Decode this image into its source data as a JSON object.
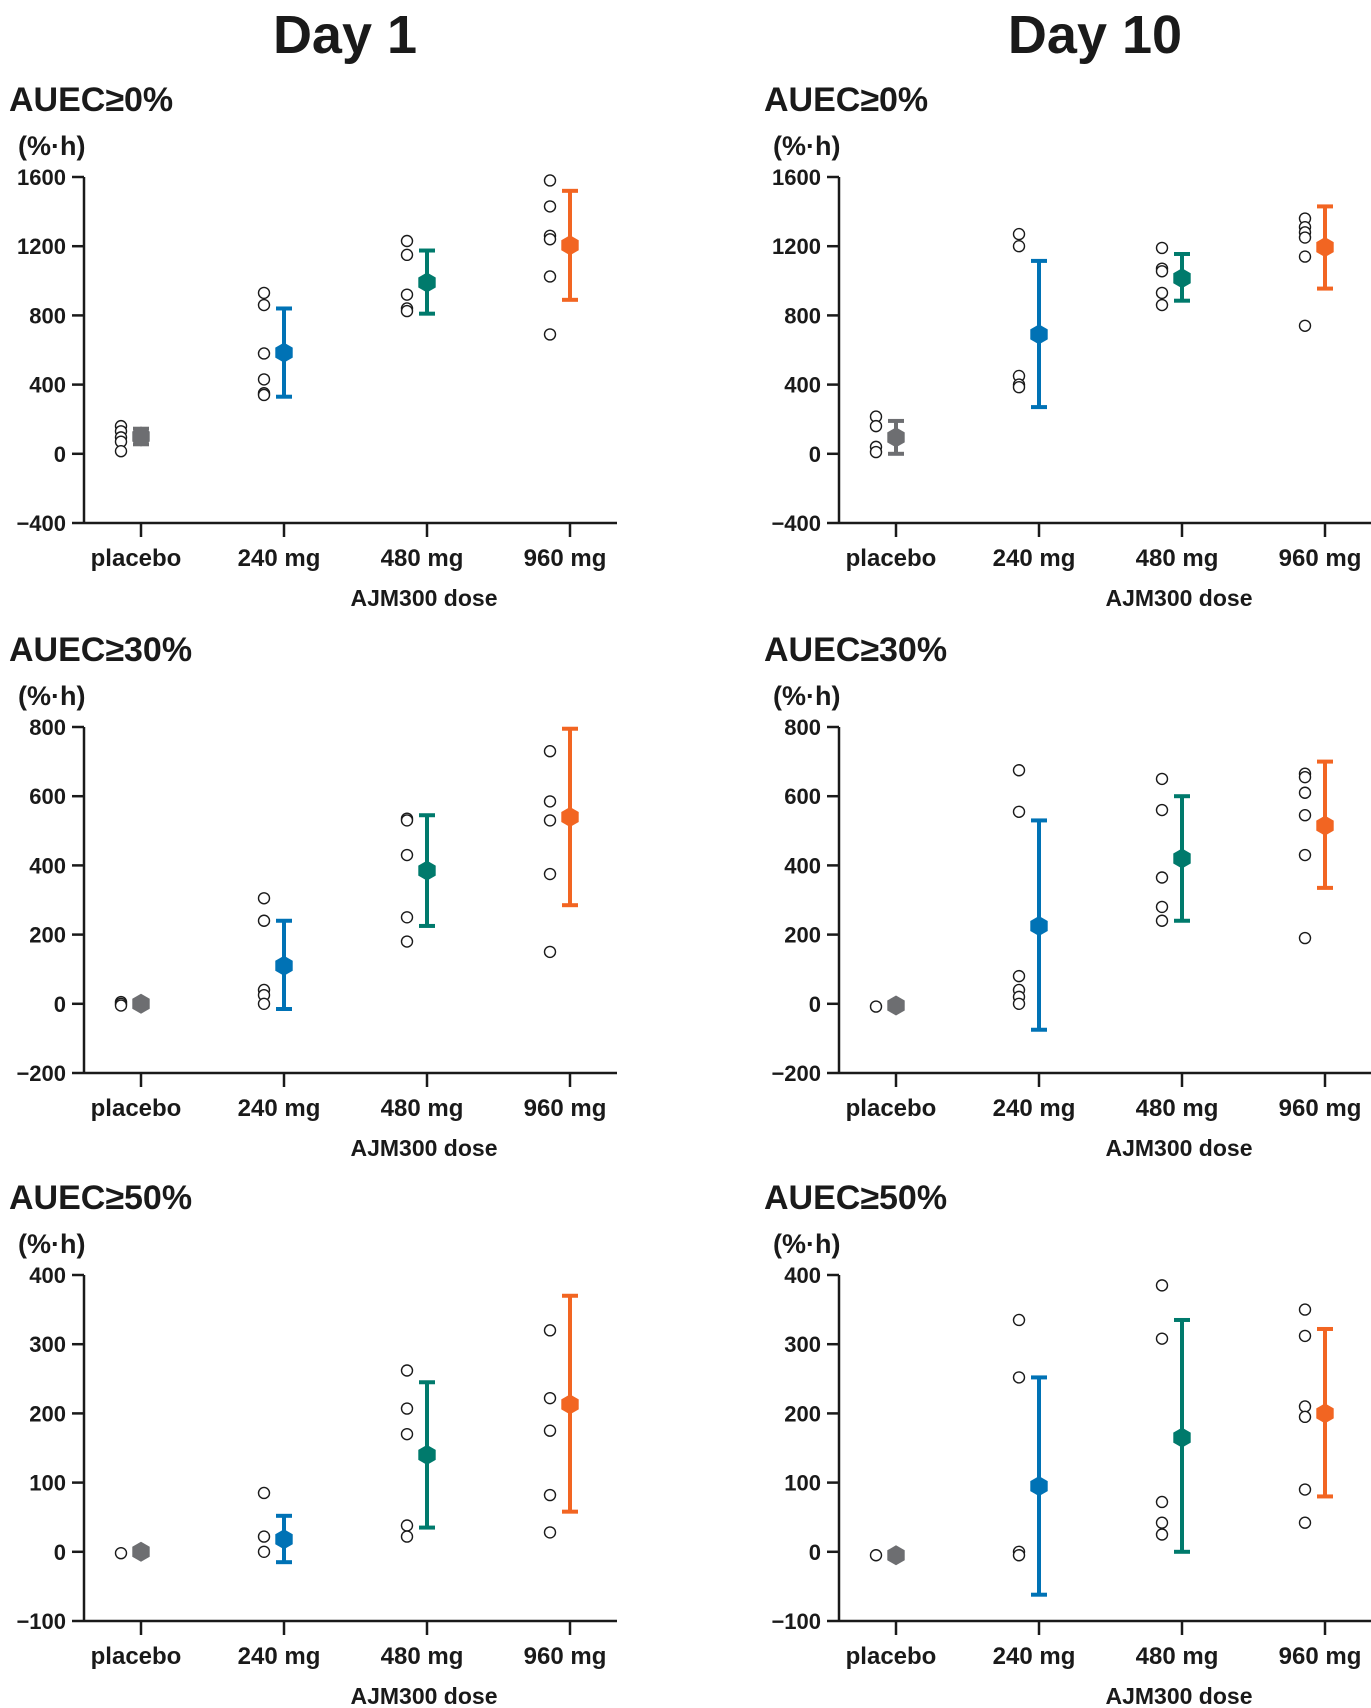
{
  "columns": [
    "Day 1",
    "Day 10"
  ],
  "chart_data": [
    {
      "type": "scatter",
      "day": "Day 1",
      "title": "AUEC≥0%",
      "unit": "(%·h)",
      "xlabel": "AJM300 dose",
      "categories": [
        "placebo",
        "240 mg",
        "480 mg",
        "960 mg"
      ],
      "ylim": [
        -400,
        1600
      ],
      "yticks": [
        -400,
        0,
        400,
        800,
        1200,
        1600
      ],
      "individual": [
        [
          160,
          130,
          95,
          70,
          15
        ],
        [
          930,
          860,
          580,
          430,
          350,
          340
        ],
        [
          1230,
          1150,
          920,
          840,
          825
        ],
        [
          1580,
          1430,
          1260,
          1240,
          1025,
          690
        ]
      ],
      "mean": [
        100,
        585,
        990,
        1205
      ],
      "error_low": [
        55,
        330,
        810,
        890
      ],
      "error_high": [
        145,
        840,
        1175,
        1520
      ]
    },
    {
      "type": "scatter",
      "day": "Day 1",
      "title": "AUEC≥30%",
      "unit": "(%·h)",
      "xlabel": "AJM300 dose",
      "categories": [
        "placebo",
        "240 mg",
        "480 mg",
        "960 mg"
      ],
      "ylim": [
        -200,
        800
      ],
      "yticks": [
        -200,
        0,
        200,
        400,
        600,
        800
      ],
      "individual": [
        [
          5,
          0,
          -5
        ],
        [
          305,
          240,
          40,
          25,
          0
        ],
        [
          535,
          530,
          430,
          250,
          180
        ],
        [
          730,
          585,
          530,
          375,
          150
        ]
      ],
      "mean": [
        0,
        110,
        385,
        540
      ],
      "error_low": [
        0,
        -15,
        225,
        285
      ],
      "error_high": [
        0,
        240,
        545,
        795
      ]
    },
    {
      "type": "scatter",
      "day": "Day 1",
      "title": "AUEC≥50%",
      "unit": "(%·h)",
      "xlabel": "AJM300 dose",
      "categories": [
        "placebo",
        "240 mg",
        "480 mg",
        "960 mg"
      ],
      "ylim": [
        -100,
        400
      ],
      "yticks": [
        -100,
        0,
        100,
        200,
        300,
        400
      ],
      "individual": [
        [
          -2
        ],
        [
          85,
          22,
          0
        ],
        [
          262,
          207,
          170,
          38,
          22
        ],
        [
          320,
          222,
          175,
          82,
          28
        ]
      ],
      "mean": [
        0,
        18,
        140,
        213
      ],
      "error_low": [
        0,
        -15,
        35,
        58
      ],
      "error_high": [
        0,
        52,
        245,
        370
      ]
    },
    {
      "type": "scatter",
      "day": "Day 10",
      "title": "AUEC≥0%",
      "unit": "(%·h)",
      "xlabel": "AJM300 dose",
      "categories": [
        "placebo",
        "240 mg",
        "480 mg",
        "960 mg"
      ],
      "ylim": [
        -400,
        1600
      ],
      "yticks": [
        -400,
        0,
        400,
        800,
        1200,
        1600
      ],
      "individual": [
        [
          215,
          160,
          40,
          10
        ],
        [
          1270,
          1200,
          450,
          400,
          385
        ],
        [
          1190,
          1070,
          1055,
          930,
          860
        ],
        [
          1360,
          1310,
          1280,
          1250,
          1140,
          740
        ]
      ],
      "mean": [
        95,
        690,
        1015,
        1195
      ],
      "error_low": [
        0,
        270,
        885,
        955
      ],
      "error_high": [
        190,
        1115,
        1155,
        1430
      ]
    },
    {
      "type": "scatter",
      "day": "Day 10",
      "title": "AUEC≥30%",
      "unit": "(%·h)",
      "xlabel": "AJM300 dose",
      "categories": [
        "placebo",
        "240 mg",
        "480 mg",
        "960 mg"
      ],
      "ylim": [
        -200,
        800
      ],
      "yticks": [
        -200,
        0,
        200,
        400,
        600,
        800
      ],
      "individual": [
        [
          -8
        ],
        [
          675,
          555,
          80,
          40,
          20,
          0
        ],
        [
          650,
          560,
          365,
          280,
          240
        ],
        [
          665,
          655,
          610,
          545,
          430,
          190
        ]
      ],
      "mean": [
        -5,
        225,
        420,
        515
      ],
      "error_low": [
        -5,
        -75,
        240,
        335
      ],
      "error_high": [
        -5,
        530,
        600,
        700
      ]
    },
    {
      "type": "scatter",
      "day": "Day 10",
      "title": "AUEC≥50%",
      "unit": "(%·h)",
      "xlabel": "AJM300 dose",
      "categories": [
        "placebo",
        "240 mg",
        "480 mg",
        "960 mg"
      ],
      "ylim": [
        -100,
        400
      ],
      "yticks": [
        -100,
        0,
        100,
        200,
        300,
        400
      ],
      "individual": [
        [
          -5
        ],
        [
          335,
          252,
          0,
          -5
        ],
        [
          385,
          308,
          72,
          42,
          25
        ],
        [
          350,
          312,
          210,
          195,
          90,
          42
        ]
      ],
      "mean": [
        -5,
        95,
        165,
        200
      ],
      "error_low": [
        -5,
        -62,
        0,
        80
      ],
      "error_high": [
        -5,
        252,
        335,
        322
      ]
    }
  ],
  "colors": {
    "placebo": "#6d6e71",
    "240 mg": "#0072b5",
    "480 mg": "#007a6c",
    "960 mg": "#f26522"
  }
}
